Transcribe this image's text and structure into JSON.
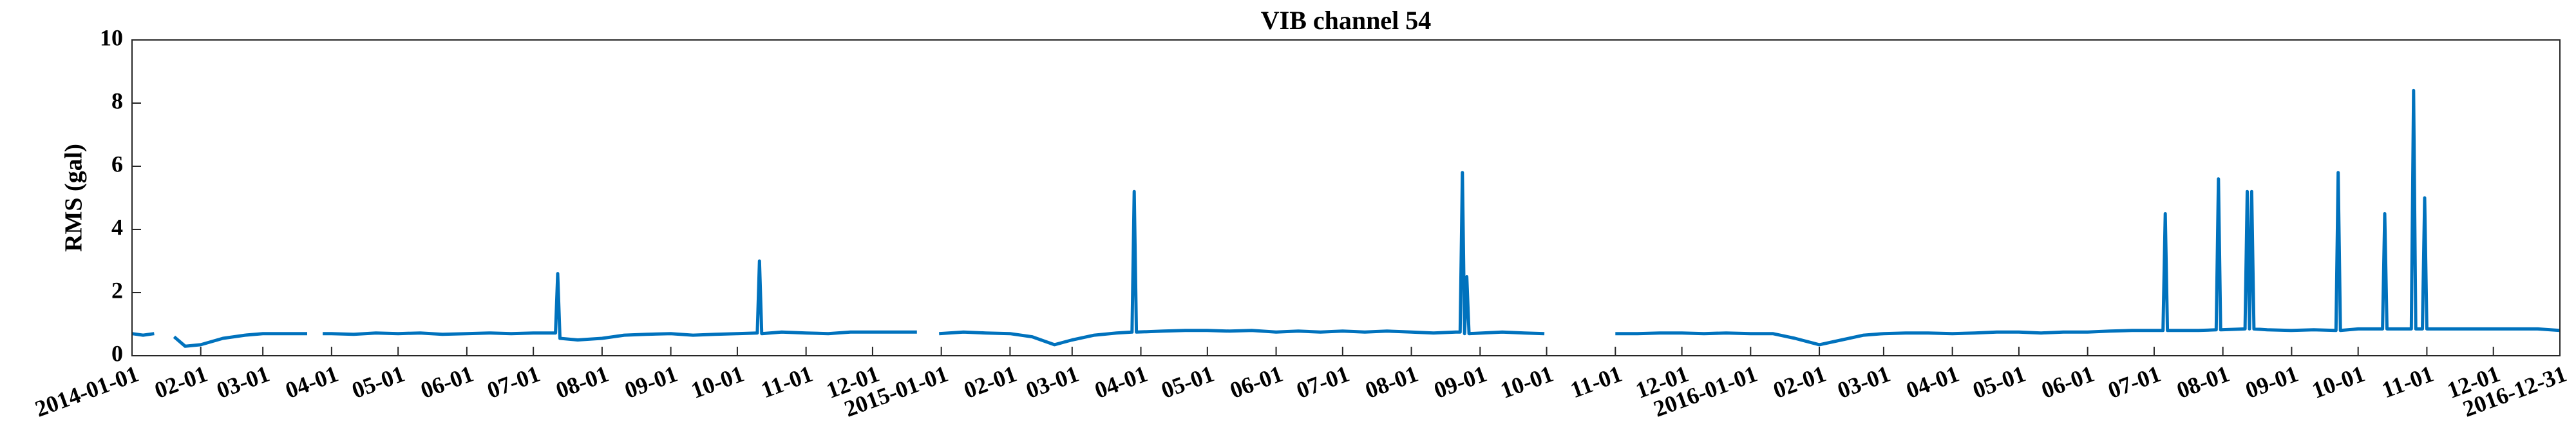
{
  "chart_data": {
    "type": "line",
    "title": "VIB channel 54",
    "y_label": "RMS (gal)",
    "color": "#0072bd",
    "xlim": [
      "2014-01-01",
      "2016-12-31"
    ],
    "ylim": [
      0,
      10
    ],
    "yticks": [
      0,
      2,
      4,
      6,
      8,
      10
    ],
    "xticks": [
      "2014-01-01",
      {
        "value": "2014-02-01",
        "label": "02-01"
      },
      {
        "value": "2014-03-01",
        "label": "03-01"
      },
      {
        "value": "2014-04-01",
        "label": "04-01"
      },
      {
        "value": "2014-05-01",
        "label": "05-01"
      },
      {
        "value": "2014-06-01",
        "label": "06-01"
      },
      {
        "value": "2014-07-01",
        "label": "07-01"
      },
      {
        "value": "2014-08-01",
        "label": "08-01"
      },
      {
        "value": "2014-09-01",
        "label": "09-01"
      },
      {
        "value": "2014-10-01",
        "label": "10-01"
      },
      {
        "value": "2014-11-01",
        "label": "11-01"
      },
      {
        "value": "2014-12-01",
        "label": "12-01"
      },
      "2015-01-01",
      {
        "value": "2015-02-01",
        "label": "02-01"
      },
      {
        "value": "2015-03-01",
        "label": "03-01"
      },
      {
        "value": "2015-04-01",
        "label": "04-01"
      },
      {
        "value": "2015-05-01",
        "label": "05-01"
      },
      {
        "value": "2015-06-01",
        "label": "06-01"
      },
      {
        "value": "2015-07-01",
        "label": "07-01"
      },
      {
        "value": "2015-08-01",
        "label": "08-01"
      },
      {
        "value": "2015-09-01",
        "label": "09-01"
      },
      {
        "value": "2015-10-01",
        "label": "10-01"
      },
      {
        "value": "2015-11-01",
        "label": "11-01"
      },
      {
        "value": "2015-12-01",
        "label": "12-01"
      },
      "2016-01-01",
      {
        "value": "2016-02-01",
        "label": "02-01"
      },
      {
        "value": "2016-03-01",
        "label": "03-01"
      },
      {
        "value": "2016-04-01",
        "label": "04-01"
      },
      {
        "value": "2016-05-01",
        "label": "05-01"
      },
      {
        "value": "2016-06-01",
        "label": "06-01"
      },
      {
        "value": "2016-07-01",
        "label": "07-01"
      },
      {
        "value": "2016-08-01",
        "label": "08-01"
      },
      {
        "value": "2016-09-01",
        "label": "09-01"
      },
      {
        "value": "2016-10-01",
        "label": "10-01"
      },
      {
        "value": "2016-11-01",
        "label": "11-01"
      },
      {
        "value": "2016-12-01",
        "label": "12-01"
      },
      "2016-12-31"
    ],
    "x": [
      "2014-01-01",
      "2014-01-06",
      "2014-01-11",
      "2014-01-15",
      "2014-01-20",
      "2014-01-25",
      "2014-02-01",
      "2014-02-11",
      "2014-02-21",
      "2014-03-01",
      "2014-03-11",
      "2014-03-21",
      "2014-03-24",
      "2014-03-28",
      "2014-04-01",
      "2014-04-11",
      "2014-04-21",
      "2014-05-01",
      "2014-05-11",
      "2014-05-21",
      "2014-06-01",
      "2014-06-11",
      "2014-06-21",
      "2014-07-01",
      "2014-07-11",
      "2014-07-12",
      "2014-07-13",
      "2014-07-21",
      "2014-08-01",
      "2014-08-11",
      "2014-08-21",
      "2014-09-01",
      "2014-09-11",
      "2014-09-21",
      "2014-10-01",
      "2014-10-10",
      "2014-10-11",
      "2014-10-12",
      "2014-10-21",
      "2014-11-01",
      "2014-11-11",
      "2014-11-21",
      "2014-12-01",
      "2014-12-11",
      "2014-12-21",
      "2014-12-25",
      "2014-12-31",
      "2015-01-11",
      "2015-01-21",
      "2015-02-01",
      "2015-02-11",
      "2015-02-21",
      "2015-03-01",
      "2015-03-11",
      "2015-03-21",
      "2015-03-28",
      "2015-03-29",
      "2015-03-30",
      "2015-04-11",
      "2015-04-21",
      "2015-05-01",
      "2015-05-11",
      "2015-05-21",
      "2015-06-01",
      "2015-06-11",
      "2015-06-21",
      "2015-07-01",
      "2015-07-11",
      "2015-07-21",
      "2015-08-01",
      "2015-08-11",
      "2015-08-21",
      "2015-08-23",
      "2015-08-24",
      "2015-08-25",
      "2015-08-26",
      "2015-08-27",
      "2015-09-11",
      "2015-09-21",
      "2015-09-30",
      "2015-10-15",
      "2015-11-01",
      "2015-11-11",
      "2015-11-21",
      "2015-12-01",
      "2015-12-11",
      "2015-12-21",
      "2016-01-01",
      "2016-01-11",
      "2016-01-21",
      "2016-02-01",
      "2016-02-11",
      "2016-02-21",
      "2016-03-01",
      "2016-03-11",
      "2016-03-21",
      "2016-04-01",
      "2016-04-11",
      "2016-04-21",
      "2016-05-01",
      "2016-05-11",
      "2016-05-21",
      "2016-06-01",
      "2016-06-11",
      "2016-06-21",
      "2016-07-01",
      "2016-07-05",
      "2016-07-06",
      "2016-07-07",
      "2016-07-21",
      "2016-07-29",
      "2016-07-30",
      "2016-07-31",
      "2016-08-11",
      "2016-08-12",
      "2016-08-13",
      "2016-08-14",
      "2016-08-15",
      "2016-08-21",
      "2016-09-01",
      "2016-09-11",
      "2016-09-21",
      "2016-09-22",
      "2016-09-23",
      "2016-10-01",
      "2016-10-12",
      "2016-10-13",
      "2016-10-14",
      "2016-10-21",
      "2016-10-25",
      "2016-10-26",
      "2016-10-27",
      "2016-10-30",
      "2016-10-31",
      "2016-11-01",
      "2016-11-11",
      "2016-11-21",
      "2016-12-01",
      "2016-12-11",
      "2016-12-21",
      "2016-12-31"
    ],
    "values": [
      0.7,
      0.65,
      0.7,
      null,
      0.6,
      0.3,
      0.35,
      0.55,
      0.65,
      0.7,
      0.7,
      0.7,
      null,
      0.7,
      0.7,
      0.68,
      0.72,
      0.7,
      0.72,
      0.68,
      0.7,
      0.72,
      0.7,
      0.72,
      0.72,
      2.6,
      0.55,
      0.5,
      0.55,
      0.65,
      0.68,
      0.7,
      0.65,
      0.68,
      0.7,
      0.72,
      3.0,
      0.7,
      0.75,
      0.72,
      0.7,
      0.75,
      0.75,
      0.75,
      0.75,
      null,
      0.7,
      0.75,
      0.72,
      0.7,
      0.6,
      0.35,
      0.5,
      0.65,
      0.72,
      0.75,
      5.2,
      0.75,
      0.78,
      0.8,
      0.8,
      0.78,
      0.8,
      0.75,
      0.78,
      0.75,
      0.78,
      0.75,
      0.78,
      0.75,
      0.72,
      0.75,
      0.75,
      5.8,
      0.7,
      2.5,
      0.7,
      0.75,
      0.72,
      0.7,
      null,
      0.7,
      0.7,
      0.72,
      0.72,
      0.7,
      0.72,
      0.7,
      0.7,
      0.55,
      0.35,
      0.5,
      0.65,
      0.7,
      0.72,
      0.72,
      0.7,
      0.72,
      0.75,
      0.75,
      0.72,
      0.75,
      0.75,
      0.78,
      0.8,
      0.8,
      0.8,
      4.5,
      0.8,
      0.8,
      0.82,
      5.6,
      0.82,
      0.85,
      5.2,
      0.85,
      5.2,
      0.85,
      0.82,
      0.8,
      0.82,
      0.8,
      5.8,
      0.8,
      0.85,
      0.85,
      4.5,
      0.85,
      0.85,
      0.85,
      8.4,
      0.85,
      0.85,
      5.0,
      0.85,
      0.85,
      0.85,
      0.85,
      0.85,
      0.85,
      0.8
    ]
  }
}
